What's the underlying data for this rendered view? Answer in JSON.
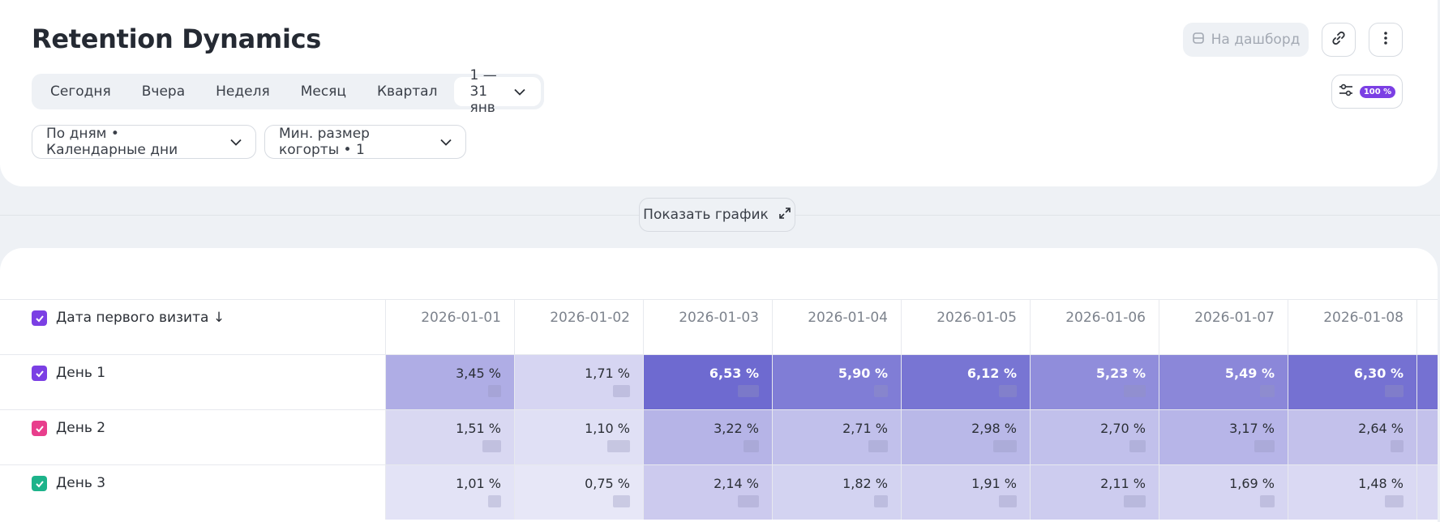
{
  "header": {
    "title": "Retention Dynamics",
    "dashboard_label": "На дашборд",
    "filter_badge": "100 %"
  },
  "periods": [
    "Сегодня",
    "Вчера",
    "Неделя",
    "Месяц",
    "Квартал"
  ],
  "date_range": "1 — 31 янв",
  "dropdowns": {
    "grouping": "По дням • Календарные дни",
    "cohort_size": "Мин. размер когорты • 1"
  },
  "chart_button": "Показать график",
  "table": {
    "first_column": "Дата первого визита ↓",
    "columns": [
      "2026-01-01",
      "2026-01-02",
      "2026-01-03",
      "2026-01-04",
      "2026-01-05",
      "2026-01-06",
      "2026-01-07",
      "2026-01-08"
    ],
    "rows": [
      {
        "label": "День 1",
        "checkbox_color": "#7b3fe4",
        "values": [
          "3,45 %",
          "1,71 %",
          "6,53 %",
          "5,90 %",
          "6,12 %",
          "5,23 %",
          "5,49 %",
          "6,30 %"
        ],
        "shades": [
          0.5,
          0.2,
          1.0,
          0.86,
          0.92,
          0.74,
          0.78,
          0.95
        ]
      },
      {
        "label": "День 2",
        "checkbox_color": "#e83e8c",
        "values": [
          "1,51 %",
          "1,10 %",
          "3,22 %",
          "2,71 %",
          "2,98 %",
          "2,70 %",
          "3,17 %",
          "2,64 %"
        ],
        "shades": [
          0.18,
          0.12,
          0.45,
          0.36,
          0.42,
          0.36,
          0.44,
          0.35
        ]
      },
      {
        "label": "День 3",
        "checkbox_color": "#1db38a",
        "values": [
          "1,01 %",
          "0,75 %",
          "2,14 %",
          "1,82 %",
          "1,91 %",
          "2,11 %",
          "1,69 %",
          "1,48 %"
        ],
        "shades": [
          0.1,
          0.07,
          0.28,
          0.22,
          0.24,
          0.27,
          0.2,
          0.17
        ]
      }
    ]
  },
  "colors": {
    "accent": "#7b3fe4",
    "heat": "#6e6ad0"
  }
}
